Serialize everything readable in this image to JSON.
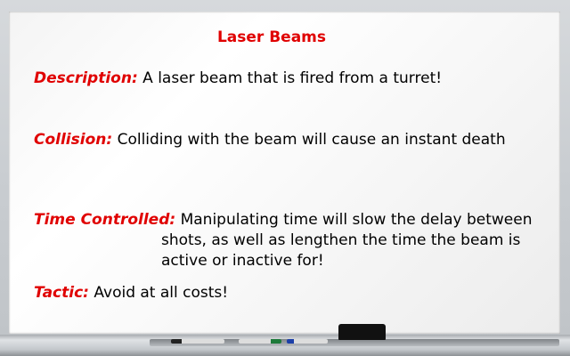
{
  "board": {
    "title": "Laser Beams",
    "entries": [
      {
        "label": "Description:",
        "text": "A laser beam that is fired from a turret!"
      },
      {
        "label": "Collision:",
        "text": "Colliding with the beam will cause an instant death"
      },
      {
        "label": "Time Controlled:",
        "text": "Manipulating time will slow the delay between",
        "continuation": [
          "shots, as well as lengthen the time the beam is",
          "active or inactive for!"
        ]
      },
      {
        "label": "Tactic:",
        "text": "Avoid at all costs!"
      }
    ]
  },
  "colors": {
    "heading": "#e00000",
    "body_text": "#000000",
    "frame": "#c9cdd1",
    "eraser": "#111111"
  },
  "objects": [
    "eraser",
    "black-marker",
    "green-marker",
    "blue-marker"
  ]
}
